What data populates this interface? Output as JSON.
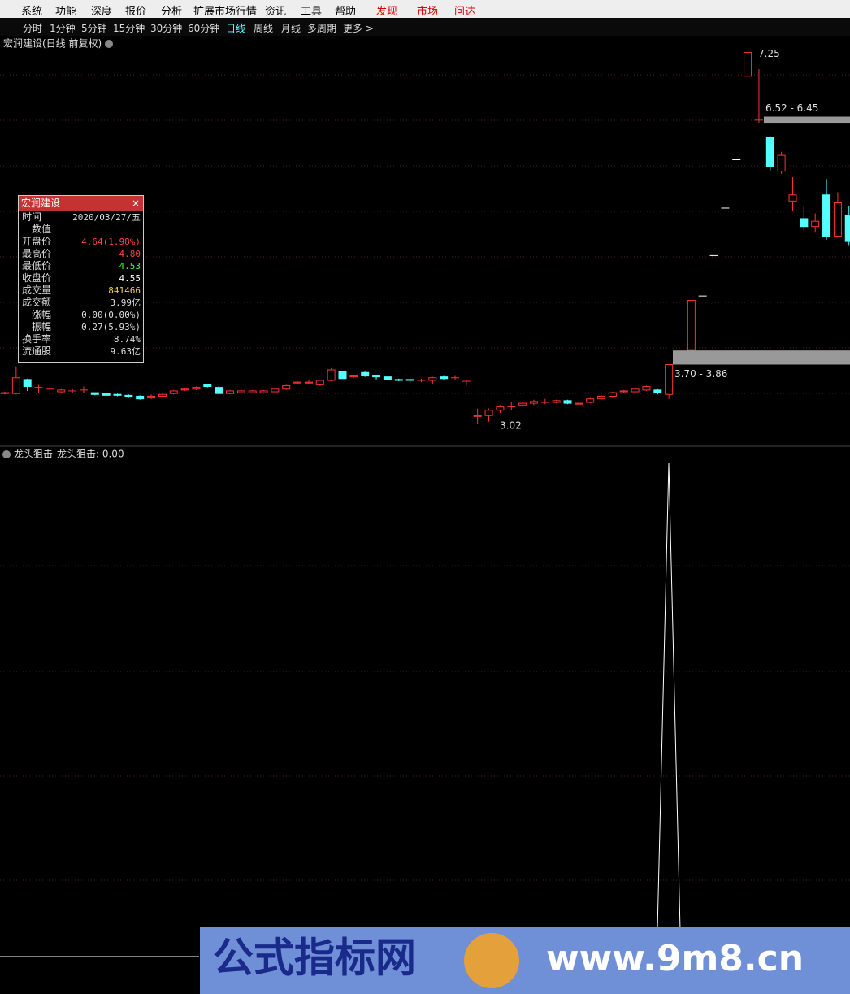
{
  "menu": [
    "系统",
    "功能",
    "深度",
    "报价",
    "分析",
    "扩展市场行情",
    "资讯",
    "工具",
    "帮助",
    "发现",
    "市场",
    "问达"
  ],
  "periods": [
    "分时",
    "1分钟",
    "5分钟",
    "15分钟",
    "30分钟",
    "60分钟",
    "日线",
    "周线",
    "月线",
    "多周期",
    "更多 >"
  ],
  "chart_data": {
    "type": "candlestick",
    "title": "宏润建设(日线 前复权)",
    "ylim": [
      2.78,
      7.44
    ],
    "up_color": "#ff3232",
    "down_color": "#54ffff",
    "candles": [
      {
        "open": 3.37,
        "close": 3.38,
        "high": 3.39,
        "low": 3.36
      },
      {
        "open": 3.37,
        "close": 3.55,
        "high": 3.68,
        "low": 3.36
      },
      {
        "open": 3.53,
        "close": 3.45,
        "high": 3.54,
        "low": 3.4
      },
      {
        "open": 3.44,
        "close": 3.44,
        "high": 3.47,
        "low": 3.38
      },
      {
        "open": 3.42,
        "close": 3.42,
        "high": 3.45,
        "low": 3.39
      },
      {
        "open": 3.39,
        "close": 3.41,
        "high": 3.42,
        "low": 3.38
      },
      {
        "open": 3.4,
        "close": 3.4,
        "high": 3.42,
        "low": 3.38
      },
      {
        "open": 3.41,
        "close": 3.41,
        "high": 3.45,
        "low": 3.38
      },
      {
        "open": 3.38,
        "close": 3.36,
        "high": 3.38,
        "low": 3.35
      },
      {
        "open": 3.37,
        "close": 3.35,
        "high": 3.37,
        "low": 3.34
      },
      {
        "open": 3.36,
        "close": 3.35,
        "high": 3.37,
        "low": 3.34
      },
      {
        "open": 3.35,
        "close": 3.33,
        "high": 3.36,
        "low": 3.32
      },
      {
        "open": 3.34,
        "close": 3.31,
        "high": 3.35,
        "low": 3.3
      },
      {
        "open": 3.32,
        "close": 3.34,
        "high": 3.36,
        "low": 3.31
      },
      {
        "open": 3.34,
        "close": 3.36,
        "high": 3.37,
        "low": 3.33
      },
      {
        "open": 3.37,
        "close": 3.4,
        "high": 3.41,
        "low": 3.36
      },
      {
        "open": 3.41,
        "close": 3.42,
        "high": 3.43,
        "low": 3.4
      },
      {
        "open": 3.42,
        "close": 3.44,
        "high": 3.45,
        "low": 3.41
      },
      {
        "open": 3.47,
        "close": 3.45,
        "high": 3.48,
        "low": 3.44
      },
      {
        "open": 3.44,
        "close": 3.37,
        "high": 3.45,
        "low": 3.37
      },
      {
        "open": 3.37,
        "close": 3.4,
        "high": 3.41,
        "low": 3.36
      },
      {
        "open": 3.38,
        "close": 3.4,
        "high": 3.41,
        "low": 3.37
      },
      {
        "open": 3.38,
        "close": 3.4,
        "high": 3.41,
        "low": 3.37
      },
      {
        "open": 3.38,
        "close": 3.4,
        "high": 3.41,
        "low": 3.37
      },
      {
        "open": 3.39,
        "close": 3.42,
        "high": 3.43,
        "low": 3.38
      },
      {
        "open": 3.42,
        "close": 3.46,
        "high": 3.47,
        "low": 3.41
      },
      {
        "open": 3.49,
        "close": 3.5,
        "high": 3.51,
        "low": 3.48
      },
      {
        "open": 3.49,
        "close": 3.5,
        "high": 3.52,
        "low": 3.48
      },
      {
        "open": 3.47,
        "close": 3.52,
        "high": 3.53,
        "low": 3.46
      },
      {
        "open": 3.52,
        "close": 3.64,
        "high": 3.66,
        "low": 3.51
      },
      {
        "open": 3.62,
        "close": 3.54,
        "high": 3.63,
        "low": 3.54
      },
      {
        "open": 3.56,
        "close": 3.57,
        "high": 3.58,
        "low": 3.55
      },
      {
        "open": 3.61,
        "close": 3.57,
        "high": 3.62,
        "low": 3.56
      },
      {
        "open": 3.57,
        "close": 3.56,
        "high": 3.58,
        "low": 3.53
      },
      {
        "open": 3.56,
        "close": 3.53,
        "high": 3.56,
        "low": 3.52
      },
      {
        "open": 3.53,
        "close": 3.52,
        "high": 3.54,
        "low": 3.51
      },
      {
        "open": 3.53,
        "close": 3.52,
        "high": 3.54,
        "low": 3.49
      },
      {
        "open": 3.52,
        "close": 3.52,
        "high": 3.54,
        "low": 3.5
      },
      {
        "open": 3.52,
        "close": 3.55,
        "high": 3.56,
        "low": 3.48
      },
      {
        "open": 3.56,
        "close": 3.54,
        "high": 3.57,
        "low": 3.53
      },
      {
        "open": 3.55,
        "close": 3.55,
        "high": 3.57,
        "low": 3.53
      },
      {
        "open": 3.51,
        "close": 3.51,
        "high": 3.53,
        "low": 3.46
      },
      {
        "open": 3.11,
        "close": 3.12,
        "high": 3.2,
        "low": 3.02
      },
      {
        "open": 3.12,
        "close": 3.18,
        "high": 3.2,
        "low": 3.05
      },
      {
        "open": 3.18,
        "close": 3.22,
        "high": 3.24,
        "low": 3.15
      },
      {
        "open": 3.22,
        "close": 3.22,
        "high": 3.28,
        "low": 3.18
      },
      {
        "open": 3.24,
        "close": 3.26,
        "high": 3.27,
        "low": 3.22
      },
      {
        "open": 3.26,
        "close": 3.28,
        "high": 3.3,
        "low": 3.24
      },
      {
        "open": 3.27,
        "close": 3.27,
        "high": 3.31,
        "low": 3.25
      },
      {
        "open": 3.27,
        "close": 3.29,
        "high": 3.3,
        "low": 3.26
      },
      {
        "open": 3.29,
        "close": 3.26,
        "high": 3.3,
        "low": 3.25
      },
      {
        "open": 3.25,
        "close": 3.26,
        "high": 3.27,
        "low": 3.24
      },
      {
        "open": 3.27,
        "close": 3.31,
        "high": 3.32,
        "low": 3.26
      },
      {
        "open": 3.31,
        "close": 3.34,
        "high": 3.35,
        "low": 3.3
      },
      {
        "open": 3.34,
        "close": 3.38,
        "high": 3.39,
        "low": 3.32
      },
      {
        "open": 3.39,
        "close": 3.4,
        "high": 3.41,
        "low": 3.38
      },
      {
        "open": 3.39,
        "close": 3.42,
        "high": 3.43,
        "low": 3.38
      },
      {
        "open": 3.41,
        "close": 3.45,
        "high": 3.46,
        "low": 3.4
      },
      {
        "open": 3.41,
        "close": 3.38,
        "high": 3.42,
        "low": 3.36
      },
      {
        "open": 3.36,
        "close": 3.7,
        "high": 3.7,
        "low": 3.31
      },
      {
        "open": 4.07,
        "close": 4.07,
        "high": 4.07,
        "low": 4.07
      },
      {
        "open": 3.86,
        "close": 4.43,
        "high": 4.43,
        "low": 3.8
      },
      {
        "open": 4.48,
        "close": 4.48,
        "high": 4.48,
        "low": 4.48
      },
      {
        "open": 4.94,
        "close": 4.94,
        "high": 4.94,
        "low": 4.94
      },
      {
        "open": 5.48,
        "close": 5.48,
        "high": 5.48,
        "low": 5.48
      },
      {
        "open": 6.03,
        "close": 6.03,
        "high": 6.03,
        "low": 6.03
      },
      {
        "open": 6.98,
        "close": 7.25,
        "high": 7.25,
        "low": 6.98
      },
      {
        "open": 6.48,
        "close": 6.48,
        "high": 7.06,
        "low": 6.45
      },
      {
        "open": 6.28,
        "close": 5.95,
        "high": 6.3,
        "low": 5.9
      },
      {
        "open": 5.9,
        "close": 6.08,
        "high": 6.12,
        "low": 5.87
      },
      {
        "open": 5.56,
        "close": 5.63,
        "high": 5.83,
        "low": 5.45
      },
      {
        "open": 5.36,
        "close": 5.27,
        "high": 5.5,
        "low": 5.22
      },
      {
        "open": 5.27,
        "close": 5.33,
        "high": 5.42,
        "low": 5.2
      },
      {
        "open": 5.63,
        "close": 5.16,
        "high": 5.81,
        "low": 5.12
      },
      {
        "open": 5.16,
        "close": 5.54,
        "high": 5.66,
        "low": 5.18
      },
      {
        "open": 5.4,
        "close": 5.1,
        "high": 5.5,
        "low": 5.05
      }
    ],
    "max_label": 7.25,
    "min_label": 3.02,
    "zones": [
      {
        "low": 3.7,
        "high": 3.86,
        "label": "3.70 - 3.86"
      },
      {
        "low": 6.45,
        "high": 6.52,
        "label": "6.52 - 6.45"
      }
    ]
  },
  "tooltip": {
    "title": "宏润建设",
    "rows": [
      [
        "时间",
        "2020/03/27/五"
      ],
      [
        "数值",
        ""
      ],
      [
        "开盘价",
        "4.64(1.98%)"
      ],
      [
        "最高价",
        "4.80"
      ],
      [
        "最低价",
        "4.53"
      ],
      [
        "收盘价",
        "4.55"
      ],
      [
        "成交量",
        "841466"
      ],
      [
        "成交额",
        "3.99亿"
      ],
      [
        "涨幅",
        "0.00(0.00%)"
      ],
      [
        "振幅",
        "0.27(5.93%)"
      ],
      [
        "换手率",
        "8.74%"
      ],
      [
        "流通股",
        "9.63亿"
      ]
    ]
  },
  "indicator": {
    "name": "龙头狙击",
    "value_text": "龙头狙击: 0.00"
  },
  "watermark": {
    "brand": "公式指标网",
    "url": "www.9m8.cn"
  }
}
